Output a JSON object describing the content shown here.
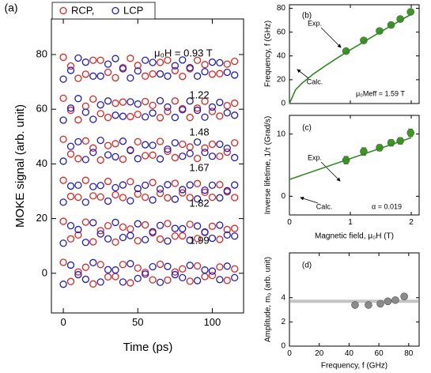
{
  "chart_data": [
    {
      "type": "scatter",
      "label": "(a)",
      "xlabel": "Time (ps)",
      "ylabel": "MOKE signal (arb. unit)",
      "xlim": [
        -8,
        121
      ],
      "ylim": [
        -14.5,
        93
      ],
      "xticks": [
        0,
        50,
        100
      ],
      "yticks": [
        0,
        20,
        40,
        60,
        80
      ],
      "x": [
        0,
        5,
        10,
        15,
        20,
        25,
        30,
        35,
        40,
        45,
        50,
        55,
        60,
        65,
        70,
        75,
        80,
        85,
        90,
        95,
        100,
        105,
        110,
        115
      ],
      "legend": true,
      "series": [
        {
          "name": "RCP,",
          "color": "#e3241c",
          "marker": "open",
          "traces": [
            [
              79,
              75.8,
              71.3,
              72.8,
              77.9,
              77.9,
              73.5,
              71.5,
              75.2,
              78.6,
              76,
              72.1,
              72.9,
              77.1,
              77.9,
              74.1,
              72,
              74.8,
              77.9,
              76.3,
              72.8,
              73,
              76.5,
              77.5
            ],
            [
              64,
              59.6,
              56.1,
              61.1,
              63.7,
              58.4,
              57,
              62.2,
              62.6,
              57.3,
              58.1,
              62.8,
              61.4,
              56.9,
              59.2,
              63,
              60.2,
              57,
              60.4,
              62.9,
              59.2,
              57.5,
              61.3,
              62.2
            ],
            [
              49,
              43.6,
              41.9,
              48.4,
              45.8,
              41.4,
              46.7,
              47.4,
              41.7,
              44.9,
              48.1,
              43,
              43.2,
              48.2,
              44.6,
              42.3,
              47.2,
              46.2,
              42,
              45.8,
              47.2,
              42.8,
              44.3,
              47.7
            ],
            [
              34,
              28.1,
              27.8,
              34,
              28.3,
              27.9,
              33.6,
              28.7,
              27.7,
              33.5,
              29,
              27.8,
              33.2,
              29.2,
              27.6,
              32.9,
              29.4,
              27.7,
              32.8,
              29.6,
              27.8,
              32.4,
              29.8,
              27.7
            ],
            [
              19,
              12.6,
              14,
              18.7,
              11.5,
              15.6,
              17.4,
              11.4,
              16.9,
              16.2,
              11.9,
              17.7,
              14.8,
              12.5,
              18.2,
              13.6,
              13.7,
              17.9,
              12.7,
              14.9,
              17.2,
              12.4,
              16,
              16.4
            ],
            [
              4,
              -3,
              0.5,
              2.2,
              -3.9,
              3.2,
              -1.3,
              -1.2,
              3.2,
              -3.5,
              1.9,
              0.3,
              -2.4,
              3.3,
              -2.5,
              0.5,
              1.6,
              -2.9,
              2.7,
              -1.2,
              -0.8,
              2.3,
              -2.6,
              1.6
            ]
          ]
        },
        {
          "name": "LCP",
          "color": "#1c1cd6",
          "marker": "open",
          "traces": [
            [
              71,
              74.2,
              78.7,
              77.2,
              72.1,
              72.1,
              76.5,
              78.5,
              74.8,
              71.4,
              74,
              77.9,
              77.1,
              72.9,
              72.1,
              75.9,
              78,
              75.2,
              72.1,
              73.7,
              77.2,
              77,
              73.5,
              72.5
            ],
            [
              56,
              60.4,
              63.9,
              58.9,
              56.3,
              61.6,
              63,
              57.8,
              57.4,
              62.7,
              61.9,
              57.2,
              58.6,
              63.1,
              60.8,
              57,
              59.8,
              63,
              59.6,
              57.1,
              60.8,
              62.5,
              58.7,
              57.8
            ],
            [
              41,
              46.4,
              48.1,
              41.6,
              44.2,
              48.6,
              43.3,
              42.6,
              48.3,
              45.1,
              41.9,
              47,
              46.8,
              41.8,
              45.4,
              47.7,
              42.8,
              43.8,
              48,
              44.2,
              42.8,
              47.2,
              45.7,
              42.3
            ],
            [
              26,
              31.9,
              32.2,
              26,
              31.7,
              32.1,
              26.4,
              31.3,
              32.3,
              26.5,
              31,
              32.2,
              26.8,
              30.8,
              32.4,
              27.1,
              30.6,
              32.3,
              27.2,
              30.4,
              32.2,
              27.6,
              30.2,
              32.3
            ],
            [
              11,
              17.4,
              16,
              11.3,
              18.5,
              14.4,
              12.6,
              18.6,
              13.1,
              13.8,
              18.1,
              12.3,
              15.2,
              17.5,
              11.8,
              16.4,
              16.3,
              12.1,
              17.3,
              15.1,
              12.8,
              17.6,
              14,
              13.6
            ],
            [
              -4,
              3,
              -0.5,
              -2.2,
              3.9,
              -3.2,
              1.3,
              1.2,
              -3.2,
              3.5,
              -1.9,
              -0.3,
              2.4,
              -3.3,
              2.5,
              -0.5,
              -1.6,
              2.9,
              -2.7,
              1.2,
              0.8,
              -2.3,
              2.6,
              -1.6
            ]
          ]
        }
      ],
      "annotations": [
        "μ₀H = 0.93 T",
        "1.22",
        "1.48",
        "1.67",
        "1.82",
        "1.99"
      ]
    },
    {
      "type": "scatter",
      "label": "(b)",
      "ylabel": "Frequency, f (GHz)",
      "xlim": [
        0,
        2.13
      ],
      "ylim": [
        0,
        83
      ],
      "xticks": [
        0,
        1,
        2
      ],
      "yticks": [
        0,
        20,
        40,
        60,
        80
      ],
      "xtick_labels": false,
      "series": [
        {
          "name": "Exp.",
          "kind": "points",
          "color": "#3a9a1e",
          "x": [
            0.93,
            1.22,
            1.48,
            1.67,
            1.82,
            1.99
          ],
          "values": [
            44,
            53,
            61,
            66,
            71,
            77
          ]
        },
        {
          "name": "Calc.",
          "kind": "line",
          "color": "#2e8b1e",
          "x": [
            0,
            0.1,
            0.2,
            0.4,
            0.6,
            0.8,
            1.0,
            1.2,
            1.4,
            1.6,
            1.8,
            2.0
          ],
          "values": [
            0,
            11.5,
            16.8,
            25.0,
            32.1,
            38.7,
            45.1,
            51.2,
            57.3,
            63.3,
            69.2,
            75.0
          ]
        }
      ],
      "annotations": [
        "μ₀Meff = 1.59 T"
      ]
    },
    {
      "type": "scatter",
      "label": "(c)",
      "ylabel": "Inverse lifetime, 1/τ (Grad/s)",
      "xlabel": "Magnetic field, μ₀H (T)",
      "xlim": [
        0,
        2.13
      ],
      "ylim": [
        -3,
        13
      ],
      "xticks": [
        0,
        1,
        2
      ],
      "yticks": [
        0,
        10
      ],
      "series": [
        {
          "name": "Exp.",
          "kind": "points",
          "color": "#3a9a1e",
          "x": [
            0.93,
            1.22,
            1.48,
            1.67,
            1.82,
            1.99
          ],
          "values": [
            5.8,
            7.2,
            7.8,
            8.6,
            8.9,
            10.2
          ],
          "errors": [
            0.6,
            0.6,
            0.5,
            0.5,
            0.5,
            0.6
          ]
        },
        {
          "name": "Calc.",
          "kind": "line",
          "color": "#2e8b1e",
          "x": [
            0,
            2.0
          ],
          "values": [
            2.7,
            9.4
          ]
        }
      ],
      "annotations": [
        "α = 0.019"
      ]
    },
    {
      "type": "scatter",
      "label": "(d)",
      "ylabel": "Amplitude, m₀ (arb. unit)",
      "xlabel": "Frequency, f (GHz)",
      "xlim": [
        0,
        87
      ],
      "ylim": [
        0,
        7.7
      ],
      "xticks": [
        0,
        20,
        40,
        60,
        80
      ],
      "yticks": [
        0,
        2,
        4
      ],
      "hline": 3.7,
      "series": [
        {
          "kind": "points",
          "color": "#8a8a8a",
          "x": [
            44,
            53,
            61,
            66,
            71,
            77
          ],
          "values": [
            3.4,
            3.4,
            3.5,
            3.7,
            3.8,
            4.1
          ]
        }
      ]
    }
  ]
}
